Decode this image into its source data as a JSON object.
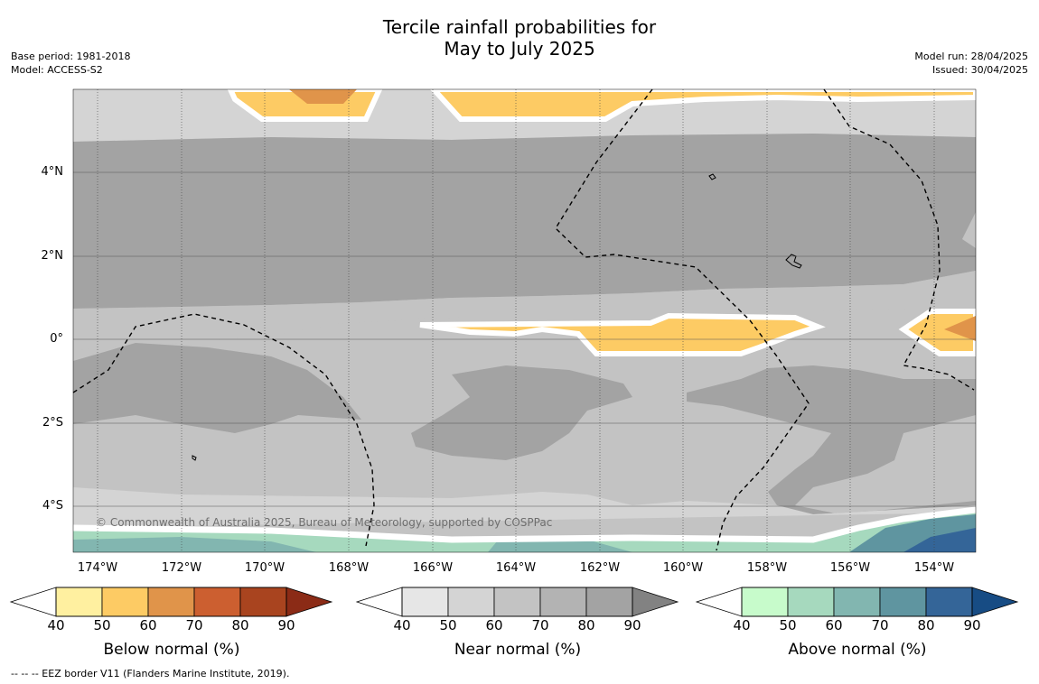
{
  "title": {
    "line1": "Tercile rainfall probabilities for",
    "line2": "May to July 2025"
  },
  "meta": {
    "base_period": "Base period: 1981-2018",
    "model": "Model: ACCESS-S2",
    "model_run": "Model run: 28/04/2025",
    "issued": "Issued: 30/04/2025"
  },
  "map": {
    "lat_labels": [
      "4°N",
      "2°N",
      "0°",
      "2°S",
      "4°S"
    ],
    "lon_labels": [
      "174°W",
      "172°W",
      "170°W",
      "168°W",
      "166°W",
      "164°W",
      "162°W",
      "160°W",
      "158°W",
      "156°W",
      "154°W"
    ],
    "copyright": "© Commonwealth of Australia 2025, Bureau of Meteorology, supported by COSPPac"
  },
  "legends": [
    {
      "title": "Below normal (%)",
      "ticks": [
        "40",
        "50",
        "60",
        "70",
        "80",
        "90"
      ],
      "colors": [
        "#fff0a0",
        "#fdcb64",
        "#e0944a",
        "#cc5f30",
        "#a9441f",
        "#8b2b16"
      ]
    },
    {
      "title": "Near normal (%)",
      "ticks": [
        "40",
        "50",
        "60",
        "70",
        "80",
        "90"
      ],
      "colors": [
        "#e6e6e6",
        "#d4d4d4",
        "#c3c3c3",
        "#b3b3b3",
        "#a3a3a3",
        "#828282"
      ]
    },
    {
      "title": "Above normal (%)",
      "ticks": [
        "40",
        "50",
        "60",
        "70",
        "80",
        "90"
      ],
      "colors": [
        "#c7fbcb",
        "#a6d9be",
        "#82b6b0",
        "#5f95a0",
        "#346598",
        "#174c84"
      ]
    }
  ],
  "footer": "--  --  -- EEZ border V11 (Flanders Marine Institute, 2019)."
}
